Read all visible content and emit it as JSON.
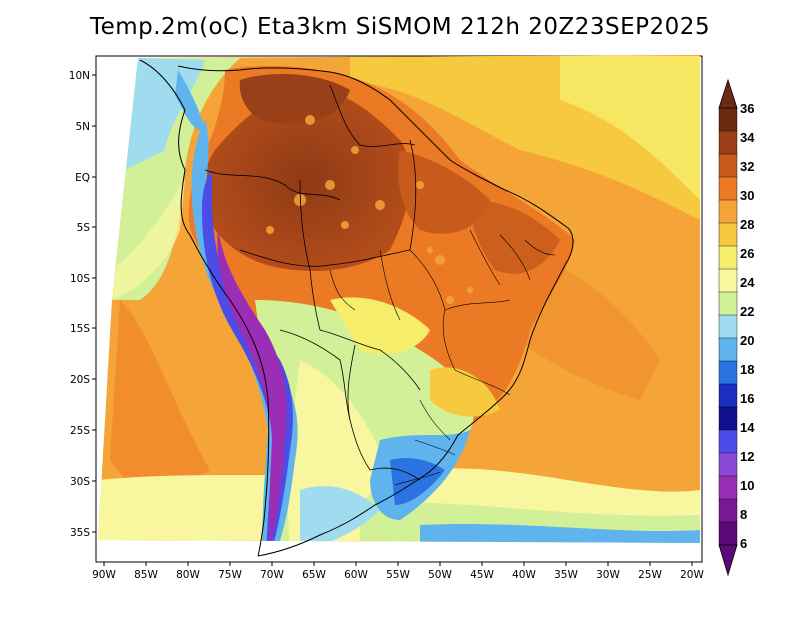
{
  "title": "Temp.2m(oC) Eta3km SiSMOM 212h 20Z23SEP2025",
  "map": {
    "lat_labels": [
      "10N",
      "5N",
      "EQ",
      "5S",
      "10S",
      "15S",
      "20S",
      "25S",
      "30S",
      "35S"
    ],
    "lon_labels": [
      "90W",
      "85W",
      "80W",
      "75W",
      "70W",
      "65W",
      "60W",
      "55W",
      "50W",
      "45W",
      "40W",
      "35W",
      "30W",
      "25W",
      "20W"
    ]
  },
  "colorbar": {
    "labels": [
      "36",
      "34",
      "32",
      "30",
      "28",
      "26",
      "24",
      "22",
      "20",
      "18",
      "16",
      "14",
      "12",
      "10",
      "8",
      "6"
    ],
    "colors": [
      "#6b2a12",
      "#9a4018",
      "#c85a1c",
      "#ec7a25",
      "#f5a438",
      "#f7c93f",
      "#f6ee6a",
      "#f8f7a0",
      "#d2f098",
      "#a0dcf0",
      "#5fb4ee",
      "#2b73e0",
      "#1a2fc0",
      "#10108c",
      "#4c4ce8",
      "#8a4ad8",
      "#9a2fb5",
      "#7a1a92",
      "#5a0a78"
    ]
  }
}
